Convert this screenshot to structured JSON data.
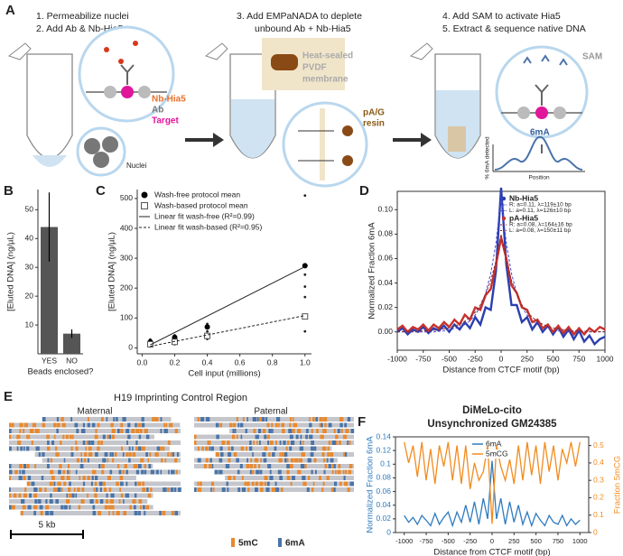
{
  "panel_a": {
    "panel": "A",
    "steps": [
      "1. Permeabilize nuclei",
      "2. Add Ab & Nb-Hia5",
      "3. Add EMPaNADA to deplete",
      "unbound Ab + Nb-Hia5",
      "4. Add SAM to activate Hia5",
      "5. Extract & sequence native DNA"
    ],
    "labels": {
      "nb_hia5": "Nb-Hia5",
      "ab": "Ab",
      "target": "Target",
      "nuclei": "Nuclei",
      "heat_sealed": "Heat-sealed",
      "pvdf": "PVDF",
      "membrane": "membrane",
      "pag": "pA/G",
      "resin": "resin",
      "sam": "SAM",
      "m6a": "6mA",
      "inset_y": "% 6mA detected",
      "inset_x": "Position"
    }
  },
  "panel_e": {
    "panel": "E",
    "title": "H19 Imprinting Control Region",
    "left": "Maternal",
    "right": "Paternal",
    "scale_bar": "5 kb",
    "legend": [
      "5mC",
      "6mA"
    ]
  },
  "chart_data": [
    {
      "type": "bar",
      "panel": "B",
      "ylabel": "[Eluted DNA] (ng/µL)",
      "xlabel": "Beads enclosed?",
      "categories": [
        "YES",
        "NO"
      ],
      "values": [
        44,
        7
      ],
      "errors": [
        12,
        1.5
      ],
      "color": "#555555",
      "ylim": [
        0,
        57
      ],
      "yticks": [
        10,
        20,
        30,
        40,
        50
      ]
    },
    {
      "type": "scatter",
      "panel": "C",
      "ylabel": "[Eluted DNA] (ng/µL)",
      "xlabel": "Cell input (millions)",
      "xlim": [
        -0.03,
        1.04
      ],
      "ylim": [
        -20,
        530
      ],
      "xticks": [
        {
          "value": 0,
          "label": "0.0"
        },
        0.2,
        0.4,
        0.6,
        0.8,
        {
          "value": 1,
          "label": "1.0"
        }
      ],
      "yticks": [
        0,
        100,
        200,
        300,
        400,
        500
      ],
      "x": [
        0.05,
        0.2,
        0.4,
        1.0
      ],
      "series": [
        {
          "name": "Wash-free protocol mean",
          "marker": "circle",
          "values": [
            20,
            35,
            70,
            275
          ]
        },
        {
          "name": "Wash-based protocol mean",
          "marker": "square",
          "values": [
            12,
            20,
            40,
            105
          ]
        },
        {
          "name": "Linear fit wash-free (R²=0.99)",
          "style": "solid",
          "x": [
            0.05,
            1.0
          ],
          "values": [
            10,
            272
          ]
        },
        {
          "name": "Linear fit wash-based (R²=0.95)",
          "style": "dashed",
          "x": [
            0.05,
            1.0
          ],
          "values": [
            5,
            108
          ]
        }
      ],
      "points": {
        "x": [
          0.05,
          0.05,
          0.05,
          0.2,
          0.2,
          0.2,
          0.4,
          0.4,
          0.4,
          0.4,
          1.0,
          1.0,
          1.0,
          1.0,
          1.0
        ],
        "y": [
          5,
          15,
          28,
          12,
          25,
          42,
          30,
          55,
          72,
          80,
          55,
          170,
          205,
          245,
          510
        ]
      }
    },
    {
      "type": "line",
      "panel": "D",
      "ylabel": "Normalized Fraction 6mA",
      "xlabel": "Distance from CTCF motif (bp)",
      "xlim": [
        -1000,
        1000
      ],
      "ylim": [
        -0.015,
        0.115
      ],
      "xticks": [
        -1000,
        -750,
        -500,
        -250,
        0,
        250,
        500,
        750,
        1000
      ],
      "yticks": [
        {
          "value": 0,
          "label": "0.00"
        },
        {
          "value": 0.02,
          "label": "0.02"
        },
        {
          "value": 0.04,
          "label": "0.04"
        },
        {
          "value": 0.06,
          "label": "0.06"
        },
        {
          "value": 0.08,
          "label": "0.08"
        },
        {
          "value": 0.1,
          "label": "0.10"
        }
      ],
      "x": [
        -1000,
        -950,
        -900,
        -850,
        -800,
        -750,
        -700,
        -650,
        -600,
        -550,
        -500,
        -450,
        -400,
        -350,
        -300,
        -250,
        -200,
        -150,
        -100,
        -50,
        0,
        50,
        100,
        150,
        200,
        250,
        300,
        350,
        400,
        450,
        500,
        550,
        600,
        650,
        700,
        750,
        800,
        850,
        900,
        950,
        1000
      ],
      "series": [
        {
          "name": "Nb-Hia5",
          "color": "#2b3fae",
          "fit_color": "#4b4bd6",
          "legend": [
            "R: a=0.11, λ=119±10 bp",
            "L: a=0.11, λ=126±10 bp"
          ],
          "values": [
            0.0,
            0.003,
            -0.002,
            0.002,
            0.0,
            0.004,
            -0.001,
            0.003,
            0.001,
            0.005,
            0.0,
            0.006,
            0.002,
            0.008,
            0.003,
            0.012,
            0.006,
            0.02,
            0.018,
            0.05,
            0.118,
            0.055,
            0.022,
            0.022,
            0.008,
            0.012,
            0.002,
            0.008,
            0.0,
            0.005,
            -0.002,
            0.004,
            -0.004,
            0.002,
            -0.006,
            0.001,
            -0.008,
            -0.003,
            -0.01,
            -0.006,
            -0.004
          ],
          "fit": [
            0,
            0,
            0,
            0,
            0,
            0,
            0,
            0,
            0.0005,
            0.0008,
            0.0017,
            0.0026,
            0.0039,
            0.006,
            0.009,
            0.0137,
            0.0208,
            0.0315,
            0.0478,
            0.0725,
            0.11,
            0.0725,
            0.0478,
            0.0315,
            0.0208,
            0.0137,
            0.009,
            0.006,
            0.0039,
            0.0026,
            0.0017,
            0.0008,
            0.0005,
            0,
            0,
            0,
            0,
            0,
            0,
            0,
            0
          ]
        },
        {
          "name": "pA-Hia5",
          "color": "#c8312d",
          "fit_color": "#8b2a2a",
          "legend": [
            "R: a=0.08, λ=164±16 bp",
            "L: a=0.08, λ=150±11 bp"
          ],
          "values": [
            0.002,
            0.005,
            0.0,
            0.004,
            0.002,
            0.006,
            0.001,
            0.006,
            0.003,
            0.008,
            0.004,
            0.01,
            0.006,
            0.014,
            0.01,
            0.02,
            0.018,
            0.03,
            0.035,
            0.055,
            0.077,
            0.06,
            0.038,
            0.032,
            0.02,
            0.018,
            0.008,
            0.01,
            0.003,
            0.006,
            0.0,
            0.005,
            -0.001,
            0.004,
            -0.002,
            0.003,
            -0.002,
            0.003,
            0.0,
            0.004,
            0.002
          ],
          "fit": [
            0.0002,
            0.0002,
            0.0003,
            0.0004,
            0.0005,
            0.0007,
            0.0009,
            0.0013,
            0.0018,
            0.0024,
            0.0033,
            0.0045,
            0.0063,
            0.0086,
            0.012,
            0.016,
            0.022,
            0.031,
            0.042,
            0.058,
            0.08,
            0.058,
            0.042,
            0.031,
            0.022,
            0.016,
            0.012,
            0.0086,
            0.0063,
            0.0045,
            0.0033,
            0.0024,
            0.0018,
            0.0013,
            0.0009,
            0.0007,
            0.0005,
            0.0004,
            0.0003,
            0.0002,
            0.0002
          ]
        }
      ]
    },
    {
      "type": "line",
      "panel": "F",
      "title": "DiMeLo-cito",
      "subtitle": "Unsynchronized GM24385",
      "ylabel": "Normalized Fraction 6mA",
      "y2label": "Fraction 5mCG",
      "xlabel": "Distance from CTCF motif (bp)",
      "xlim": [
        -1100,
        1100
      ],
      "ylim": [
        0,
        0.14
      ],
      "y2lim": [
        0,
        0.55
      ],
      "xticks": [
        -1000,
        -750,
        -500,
        -250,
        0,
        250,
        500,
        750,
        1000
      ],
      "yticks": [
        0,
        0.02,
        0.04,
        0.06,
        0.08,
        0.1,
        0.12,
        0.14
      ],
      "y2ticks": [
        0,
        0.1,
        0.2,
        0.3,
        0.4,
        0.5
      ],
      "x": [
        -1000,
        -950,
        -900,
        -850,
        -800,
        -750,
        -700,
        -650,
        -600,
        -550,
        -500,
        -450,
        -400,
        -350,
        -300,
        -250,
        -200,
        -150,
        -100,
        -50,
        0,
        50,
        100,
        150,
        200,
        250,
        300,
        350,
        400,
        450,
        500,
        550,
        600,
        650,
        700,
        750,
        800,
        850,
        900,
        950,
        1000
      ],
      "series": [
        {
          "name": "6mA",
          "color": "#2f7bbf",
          "values": [
            0.025,
            0.015,
            0.022,
            0.012,
            0.025,
            0.018,
            0.01,
            0.028,
            0.012,
            0.022,
            0.03,
            0.01,
            0.03,
            0.015,
            0.04,
            0.015,
            0.045,
            0.012,
            0.05,
            0.02,
            0.105,
            0.02,
            0.05,
            0.012,
            0.045,
            0.015,
            0.04,
            0.012,
            0.03,
            0.01,
            0.028,
            0.018,
            0.01,
            0.025,
            0.015,
            0.012,
            0.025,
            0.01,
            0.02,
            0.012,
            0.018
          ]
        },
        {
          "name": "5mCG",
          "color": "#f28b1f",
          "axis": "y2",
          "values": [
            0.52,
            0.4,
            0.5,
            0.32,
            0.52,
            0.3,
            0.48,
            0.28,
            0.5,
            0.38,
            0.52,
            0.3,
            0.5,
            0.28,
            0.5,
            0.25,
            0.4,
            0.3,
            0.35,
            0.5,
            0.05,
            0.5,
            0.38,
            0.3,
            0.42,
            0.28,
            0.5,
            0.3,
            0.52,
            0.33,
            0.5,
            0.28,
            0.52,
            0.35,
            0.5,
            0.3,
            0.48,
            0.4,
            0.52,
            0.38,
            0.52
          ]
        }
      ]
    }
  ]
}
